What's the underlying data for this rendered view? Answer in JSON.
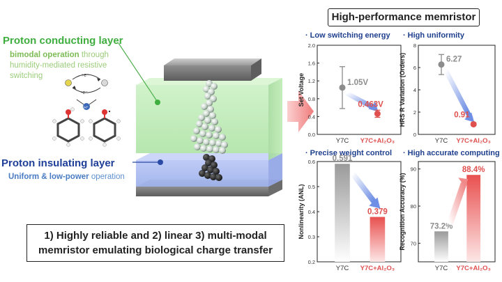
{
  "left": {
    "proton_conducting": {
      "title": "Proton conducting layer",
      "desc_bold": "bimodal operation",
      "desc_rest": " through humidity-mediated resistive switching"
    },
    "proton_insulating": {
      "title": "Proton insulating layer",
      "desc_bold": "Uniform & low-power",
      "desc_rest": " operation"
    },
    "reaction_labels": {
      "plus_e": "+e⁻",
      "minus_e": "-e⁻",
      "h_plus": "H⁺"
    },
    "caption_line1": "1) Highly reliable and 2) linear 3) multi-modal",
    "caption_line2": "memristor emulating biological charge transfer"
  },
  "right": {
    "title": "High-performance memristor"
  },
  "colors": {
    "gray": "#8c8c8c",
    "red": "#e0504f",
    "blue_arrow": "#6f8fe6",
    "green_layer": "#a8e6a0",
    "blue_layer": "#9eb3f0"
  },
  "chart_data": [
    {
      "type": "scatter",
      "title": "Low switching energy",
      "ylabel": "Set Voltage",
      "categories": [
        "Y7C",
        "Y7C+Al₂O₃"
      ],
      "values": [
        1.05,
        0.463
      ],
      "errors": [
        0.47,
        0.08
      ],
      "data_labels": [
        "1.05V",
        "0.463V"
      ],
      "ylim": [
        0.0,
        2.0
      ],
      "yticks": [
        "0.0",
        "0.4",
        "0.8",
        "1.2",
        "1.6",
        "2.0"
      ]
    },
    {
      "type": "scatter",
      "title": "High uniformity",
      "ylabel": "HRS R Variation (Orders)",
      "categories": [
        "Y7C",
        "Y7C+Al₂O₃"
      ],
      "values": [
        6.27,
        0.91
      ],
      "errors": [
        0.9,
        0.12
      ],
      "data_labels": [
        "6.27",
        "0.91"
      ],
      "ylim": [
        0,
        8
      ],
      "yticks": [
        "0",
        "2",
        "4",
        "6",
        "8"
      ]
    },
    {
      "type": "bar",
      "title": "Precise weight control",
      "ylabel": "Nonlinearity (ANL)",
      "categories": [
        "Y7C",
        "Y7C+Al₂O₃"
      ],
      "values": [
        0.591,
        0.379
      ],
      "data_labels": [
        "0.591",
        "0.379"
      ],
      "ylim": [
        0.2,
        0.6
      ],
      "yticks": [
        "0.2",
        "0.3",
        "0.4",
        "0.5",
        "0.6"
      ]
    },
    {
      "type": "bar",
      "title": "High accurate computing",
      "ylabel": "Recognition Accuracy (%)",
      "categories": [
        "Y7C",
        "Y7C+Al₂O₃"
      ],
      "values": [
        73.2,
        88.4
      ],
      "data_labels": [
        "73.2%",
        "88.4%"
      ],
      "ylim": [
        65,
        92
      ],
      "yticks": [
        "70",
        "80",
        "90"
      ]
    }
  ]
}
